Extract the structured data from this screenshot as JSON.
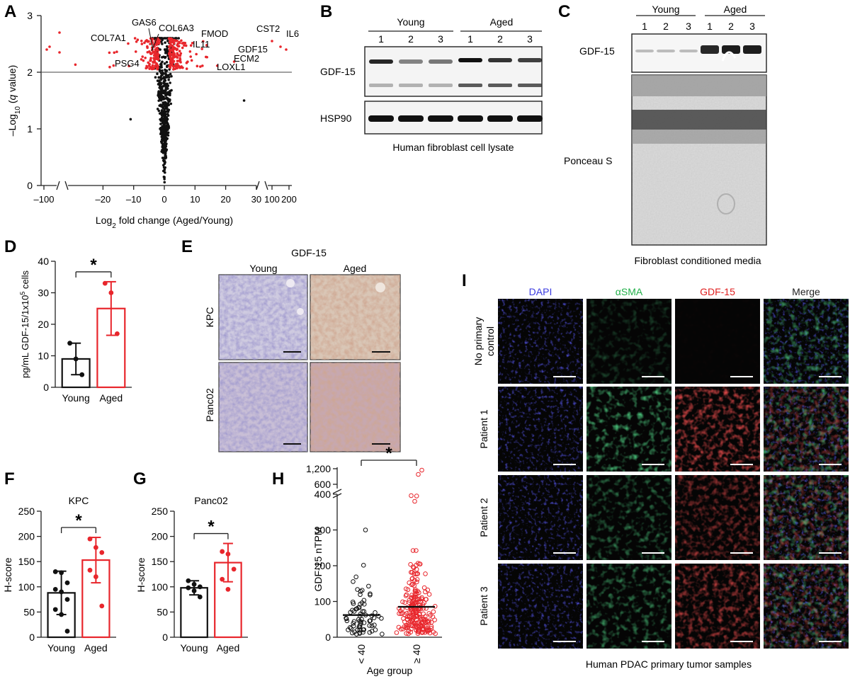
{
  "panels": {
    "a": "A",
    "b": "B",
    "c": "C",
    "d": "D",
    "e": "E",
    "f": "F",
    "g": "G",
    "h": "H",
    "i": "I"
  },
  "panel_a": {
    "chart_data": {
      "type": "scatter",
      "title": "",
      "xlabel_main": "Log",
      "xlabel_sub": "2",
      "xlabel_rest": " fold change (Aged/Young)",
      "ylabel_pre": "–Log",
      "ylabel_sub": "10",
      "ylabel_q": "q",
      "ylabel_rest": " value)",
      "ylabel_open": " (",
      "x_ticks": [
        "–100",
        "–20",
        "–10",
        "0",
        "10",
        "20",
        "30",
        "100",
        "200"
      ],
      "y_ticks": [
        "0",
        "1",
        "2",
        "3"
      ],
      "ylim": [
        0,
        3
      ],
      "threshold": 2,
      "significant_color": "#e8262c",
      "nonsignificant_color": "#111111",
      "gene_labels": [
        "GAS6",
        "COL6A3",
        "COL7A1",
        "FMOD",
        "IL11",
        "CST2",
        "IL6",
        "GDF15",
        "ECM2",
        "PSG4",
        "LOXL1"
      ]
    }
  },
  "panel_b": {
    "group_young": "Young",
    "group_aged": "Aged",
    "lanes": [
      "1",
      "2",
      "3",
      "1",
      "2",
      "3"
    ],
    "band_top": "GDF-15",
    "band_bottom": "HSP90",
    "caption": "Human fibroblast cell lysate"
  },
  "panel_c": {
    "group_young": "Young",
    "group_aged": "Aged",
    "lanes": [
      "1",
      "2",
      "3",
      "1",
      "2",
      "3"
    ],
    "band_top": "GDF-15",
    "stain": "Ponceau S",
    "caption": "Fibroblast conditioned media"
  },
  "panel_d": {
    "chart_data": {
      "type": "bar",
      "categories": [
        "Young",
        "Aged"
      ],
      "values": [
        9,
        25
      ],
      "errors": [
        5,
        8.5
      ],
      "points": [
        [
          14,
          9,
          4
        ],
        [
          33,
          30,
          17
        ]
      ],
      "ylim": [
        0,
        40
      ],
      "y_ticks": [
        "0",
        "10",
        "20",
        "30",
        "40"
      ],
      "ylabel_pre": "pg/mL GDF-15/1x10",
      "ylabel_sup": "5",
      "ylabel_post": " cells",
      "significance": "*",
      "colors": [
        "#111111",
        "#e8262c"
      ]
    }
  },
  "panel_e": {
    "title": "GDF-15",
    "col_young": "Young",
    "col_aged": "Aged",
    "row_kpc": "KPC",
    "row_panc": "Panc02"
  },
  "panel_f": {
    "chart_data": {
      "type": "bar",
      "title": "KPC",
      "categories": [
        "Young",
        "Aged"
      ],
      "values": [
        88,
        153
      ],
      "errors": [
        43,
        45
      ],
      "points": [
        [
          130,
          128,
          108,
          95,
          90,
          75,
          55,
          45,
          12
        ],
        [
          195,
          178,
          168,
          133,
          120,
          62
        ]
      ],
      "ylim": [
        0,
        250
      ],
      "y_ticks": [
        "0",
        "50",
        "100",
        "150",
        "200",
        "250"
      ],
      "ylabel": "H-score",
      "significance": "*",
      "colors": [
        "#111111",
        "#e8262c"
      ]
    }
  },
  "panel_g": {
    "chart_data": {
      "type": "bar",
      "title": "Panc02",
      "categories": [
        "Young",
        "Aged"
      ],
      "values": [
        98,
        148
      ],
      "errors": [
        14,
        38
      ],
      "points": [
        [
          112,
          105,
          100,
          98,
          92,
          80
        ],
        [
          170,
          165,
          135,
          115,
          95
        ]
      ],
      "ylim": [
        0,
        250
      ],
      "y_ticks": [
        "0",
        "50",
        "100",
        "150",
        "200",
        "250"
      ],
      "ylabel": "H-score",
      "significance": "*",
      "colors": [
        "#111111",
        "#e8262c"
      ]
    }
  },
  "panel_h": {
    "chart_data": {
      "type": "scatter",
      "categories": [
        "< 40",
        "≥ 40"
      ],
      "medians": [
        62,
        85
      ],
      "y_ticks": [
        "0",
        "100",
        "200",
        "300",
        "400",
        "600",
        "1,200"
      ],
      "ylabel": "GDF-15 nTPM",
      "xlabel": "Age group",
      "significance": "*",
      "colors": [
        "#111111",
        "#e8262c"
      ]
    }
  },
  "panel_i": {
    "columns": [
      "DAPI",
      "αSMA",
      "GDF-15",
      "Merge"
    ],
    "column_colors": [
      "#3a3ae0",
      "#22b04a",
      "#e02020",
      "#222222"
    ],
    "rows": [
      "No primary control",
      "Patient 1",
      "Patient 2",
      "Patient 3"
    ],
    "row_line1": [
      "No primary",
      "Patient 1",
      "Patient 2",
      "Patient 3"
    ],
    "row_line2": [
      "control",
      "",
      "",
      ""
    ],
    "caption": "Human PDAC primary tumor samples"
  }
}
